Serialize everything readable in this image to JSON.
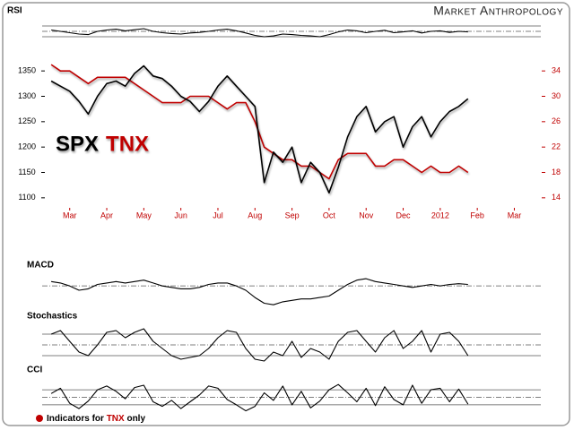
{
  "header": {
    "title": "Market Anthropology"
  },
  "footer": {
    "text": "Indicators for",
    "highlight": "TNX",
    "suffix": "only"
  },
  "chart_data": [
    {
      "type": "line",
      "x": [
        0.5,
        0.75,
        1,
        1.25,
        1.5,
        1.75,
        2,
        2.25,
        2.5,
        2.75,
        3,
        3.25,
        3.5,
        3.75,
        4,
        4.25,
        4.5,
        4.75,
        5,
        5.25,
        5.5,
        5.75,
        6,
        6.25,
        6.5,
        6.75,
        7,
        7.25,
        7.5,
        7.75,
        8,
        8.25,
        8.5,
        8.75,
        9,
        9.25,
        9.5,
        9.75,
        10,
        10.25,
        10.5,
        10.75,
        11,
        11.25,
        11.5,
        11.75
      ],
      "series": [
        {
          "name": "SPX",
          "color": "#000000",
          "values": [
            1330,
            1320,
            1310,
            1290,
            1265,
            1300,
            1325,
            1330,
            1320,
            1345,
            1360,
            1340,
            1335,
            1320,
            1300,
            1290,
            1270,
            1290,
            1320,
            1340,
            1320,
            1300,
            1280,
            1130,
            1190,
            1170,
            1200,
            1130,
            1170,
            1150,
            1110,
            1160,
            1220,
            1260,
            1280,
            1230,
            1250,
            1260,
            1200,
            1240,
            1260,
            1220,
            1250,
            1270,
            1280,
            1295
          ]
        },
        {
          "name": "TNX",
          "color": "#c00000",
          "axis": "y2",
          "values": [
            35,
            34,
            34,
            33,
            32,
            33,
            33,
            33,
            33,
            32,
            31,
            30,
            29,
            29,
            29,
            30,
            30,
            30,
            29,
            28,
            29,
            29,
            26,
            22,
            21,
            20,
            20,
            19,
            19,
            18,
            17,
            20,
            21,
            21,
            21,
            19,
            19,
            20,
            20,
            19,
            18,
            19,
            18,
            18,
            19,
            18
          ]
        }
      ],
      "xlim": [
        0.45,
        13.4
      ],
      "xticks": [
        {
          "value": 1,
          "label": "Mar"
        },
        {
          "value": 2,
          "label": "Apr"
        },
        {
          "value": 3,
          "label": "May"
        },
        {
          "value": 4,
          "label": "Jun"
        },
        {
          "value": 5,
          "label": "Jul"
        },
        {
          "value": 6,
          "label": "Aug"
        },
        {
          "value": 7,
          "label": "Sep"
        },
        {
          "value": 8,
          "label": "Oct"
        },
        {
          "value": 9,
          "label": "Nov"
        },
        {
          "value": 10,
          "label": "Dec"
        },
        {
          "value": 11,
          "label": "2012"
        },
        {
          "value": 12,
          "label": "Feb"
        },
        {
          "value": 13,
          "label": "Mar"
        }
      ],
      "ylim": [
        1075,
        1375
      ],
      "yticks": [
        1100,
        1150,
        1200,
        1250,
        1300,
        1350
      ],
      "y2lim": [
        12,
        36
      ],
      "y2ticks": [
        14,
        18,
        22,
        26,
        30,
        34
      ]
    },
    {
      "type": "line",
      "title": "RSI",
      "color": "#000000",
      "ylim": [
        0,
        100
      ],
      "levels": [
        30,
        50,
        70
      ],
      "values": [
        55,
        50,
        45,
        40,
        38,
        50,
        55,
        58,
        52,
        56,
        60,
        50,
        45,
        42,
        40,
        44,
        46,
        50,
        55,
        58,
        52,
        44,
        35,
        30,
        33,
        40,
        38,
        35,
        33,
        30,
        38,
        48,
        55,
        52,
        45,
        50,
        54,
        45,
        48,
        52,
        44,
        50,
        52,
        46,
        50,
        48
      ]
    },
    {
      "type": "line",
      "title": "MACD",
      "color": "#000000",
      "ylim": [
        -1.6,
        1
      ],
      "levels": [
        0
      ],
      "values": [
        0.3,
        0.2,
        0,
        -0.3,
        -0.2,
        0.1,
        0.2,
        0.3,
        0.2,
        0.3,
        0.4,
        0.2,
        0,
        -0.1,
        -0.2,
        -0.2,
        -0.1,
        0.1,
        0.2,
        0.2,
        0,
        -0.3,
        -0.8,
        -1.2,
        -1.3,
        -1.1,
        -1,
        -0.9,
        -0.9,
        -0.8,
        -0.7,
        -0.3,
        0.1,
        0.4,
        0.5,
        0.3,
        0.2,
        0.1,
        0,
        -0.1,
        0,
        0.1,
        0,
        0.1,
        0.15,
        0.1
      ]
    },
    {
      "type": "line",
      "title": "Stochastics",
      "color": "#000000",
      "ylim": [
        0,
        100
      ],
      "levels": [
        20,
        50,
        80
      ],
      "values": [
        80,
        90,
        60,
        30,
        20,
        50,
        85,
        90,
        70,
        85,
        95,
        60,
        40,
        20,
        10,
        15,
        20,
        40,
        70,
        90,
        85,
        40,
        10,
        5,
        30,
        20,
        60,
        15,
        40,
        30,
        10,
        60,
        85,
        90,
        60,
        30,
        70,
        90,
        40,
        60,
        90,
        30,
        80,
        85,
        60,
        20
      ]
    },
    {
      "type": "line",
      "title": "CCI",
      "color": "#000000",
      "ylim": [
        -220,
        220
      ],
      "levels": [
        -100,
        0,
        100
      ],
      "values": [
        50,
        120,
        -80,
        -150,
        -50,
        100,
        150,
        80,
        -20,
        130,
        160,
        -60,
        -120,
        -40,
        -150,
        -60,
        30,
        150,
        120,
        -30,
        -100,
        -180,
        -120,
        60,
        -40,
        150,
        -100,
        80,
        -140,
        -50,
        100,
        170,
        60,
        -60,
        120,
        -110,
        140,
        -30,
        -100,
        160,
        -80,
        100,
        120,
        -60,
        110,
        -90
      ]
    }
  ]
}
